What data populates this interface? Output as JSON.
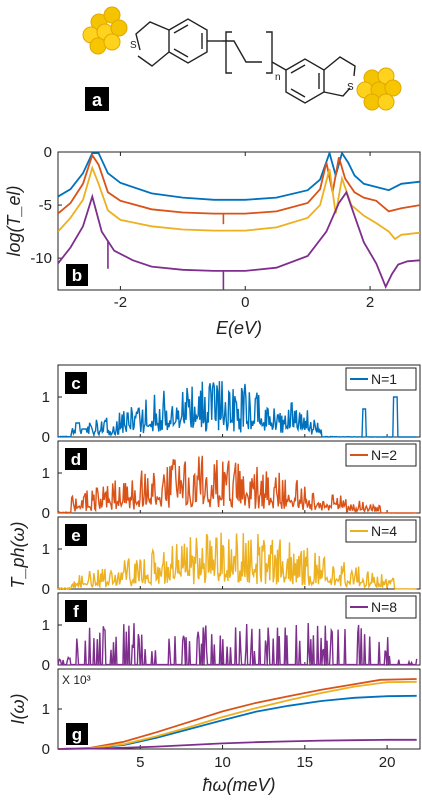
{
  "molecule": {
    "atom_s_left": "S",
    "atom_s_right": "S",
    "repeat_n": "n",
    "panel_label": "a"
  },
  "chart_data": [
    {
      "type": "line",
      "panel": "b",
      "xlabel": "E(eV)",
      "ylabel": "log(T_el)",
      "xlim": [
        -3.0,
        2.8
      ],
      "ylim": [
        -13,
        0
      ],
      "xticks": [
        -2,
        0,
        2
      ],
      "yticks": [
        0,
        -5,
        -10
      ],
      "xtick_labels": [
        "-2",
        "0",
        "2"
      ],
      "ytick_labels": [
        "0",
        "-5",
        "-10"
      ],
      "grid": false,
      "series": [
        {
          "color": "#0072BD",
          "x": [
            -3.0,
            -2.8,
            -2.6,
            -2.45,
            -2.35,
            -2.2,
            -2.0,
            -1.5,
            -1.0,
            -0.5,
            0.0,
            0.5,
            1.0,
            1.2,
            1.35,
            1.45,
            1.55,
            1.65,
            1.75,
            1.9,
            2.1,
            2.3,
            2.5,
            2.8
          ],
          "y": [
            -4.2,
            -3.5,
            -2.0,
            -0.1,
            -0.1,
            -2.0,
            -2.9,
            -3.9,
            -4.3,
            -4.5,
            -4.5,
            -4.3,
            -3.6,
            -2.6,
            -0.1,
            -2.2,
            -0.1,
            -1.0,
            -2.2,
            -3.0,
            -3.3,
            -3.6,
            -3.0,
            -2.8
          ]
        },
        {
          "color": "#D95319",
          "x": [
            -3.0,
            -2.8,
            -2.6,
            -2.45,
            -2.35,
            -2.2,
            -2.0,
            -1.5,
            -1.0,
            -0.5,
            0.0,
            0.5,
            1.0,
            1.2,
            1.3,
            1.4,
            1.5,
            1.6,
            1.75,
            1.9,
            2.1,
            2.3,
            2.5,
            2.8
          ],
          "y": [
            -5.8,
            -4.8,
            -3.0,
            -0.3,
            -1.2,
            -3.8,
            -4.6,
            -5.4,
            -5.7,
            -5.8,
            -5.8,
            -5.6,
            -4.8,
            -3.5,
            -1.0,
            -3.8,
            -0.5,
            -2.5,
            -3.8,
            -4.3,
            -4.6,
            -5.6,
            -5.3,
            -5.0
          ]
        },
        {
          "color": "#EDB120",
          "x": [
            -3.0,
            -2.8,
            -2.6,
            -2.45,
            -2.35,
            -2.2,
            -2.0,
            -1.5,
            -1.0,
            -0.5,
            0.0,
            0.5,
            1.0,
            1.2,
            1.35,
            1.45,
            1.55,
            1.7,
            1.9,
            2.1,
            2.3,
            2.4,
            2.5,
            2.8
          ],
          "y": [
            -7.5,
            -6.2,
            -4.5,
            -1.5,
            -3.0,
            -5.5,
            -6.4,
            -7.0,
            -7.3,
            -7.4,
            -7.4,
            -7.1,
            -6.2,
            -5.0,
            -1.6,
            -5.8,
            -2.5,
            -5.0,
            -6.0,
            -6.7,
            -7.5,
            -8.2,
            -7.8,
            -7.6
          ]
        },
        {
          "color": "#7E2F8E",
          "x": [
            -3.0,
            -2.8,
            -2.6,
            -2.45,
            -2.3,
            -2.1,
            -1.8,
            -1.5,
            -1.0,
            -0.5,
            0.0,
            0.5,
            1.0,
            1.3,
            1.5,
            1.62,
            1.75,
            1.9,
            2.1,
            2.25,
            2.35,
            2.45,
            2.6,
            2.8
          ],
          "y": [
            -10.5,
            -9.0,
            -7.0,
            -4.2,
            -7.5,
            -9.3,
            -10.2,
            -10.8,
            -11.1,
            -11.2,
            -11.2,
            -10.9,
            -9.8,
            -7.5,
            -4.8,
            -3.8,
            -6.0,
            -8.5,
            -10.5,
            -12.7,
            -11.5,
            -10.6,
            -10.3,
            -10.2
          ]
        }
      ],
      "dips": [
        {
          "series": 1,
          "x": -0.35,
          "y": -6.8
        },
        {
          "series": 3,
          "x": -0.35,
          "y": -13.0
        },
        {
          "series": 3,
          "x": -2.2,
          "y": -11.0
        }
      ]
    },
    {
      "type": "line",
      "panels": [
        {
          "label": "c",
          "legend": "N=1",
          "color": "#0072BD",
          "center": 9.5,
          "width": 6.5,
          "cutoff": 16.0,
          "extras": [
            [
              1.2,
              0.35
            ],
            [
              1.6,
              0.2
            ],
            [
              18.6,
              0.7
            ],
            [
              20.5,
              1.0
            ]
          ]
        },
        {
          "label": "d",
          "legend": "N=2",
          "color": "#D95319",
          "center": 9.0,
          "width": 7.5,
          "cutoff": 19.6,
          "extras": []
        },
        {
          "label": "e",
          "legend": "N=4",
          "color": "#EDB120",
          "center": 10.5,
          "width": 8.0,
          "cutoff": 20.5,
          "extras": []
        },
        {
          "label": "f",
          "legend": "N=8",
          "color": "#7E2F8E",
          "center": 10.0,
          "width": 9.0,
          "cutoff": 20.5,
          "extras": []
        }
      ],
      "ylabel": "T_ph(ω)",
      "xlim": [
        0,
        22
      ],
      "ylim": [
        0,
        1.8
      ],
      "yticks": [
        0,
        1
      ],
      "ytick_labels": [
        "0",
        "1"
      ],
      "legend_position": "top-right"
    },
    {
      "type": "line",
      "panel": "g",
      "xlabel": "ħω(meV)",
      "ylabel": "I(ω)",
      "multiplier": "X 10³",
      "xlim": [
        0,
        22
      ],
      "ylim": [
        0,
        2
      ],
      "xticks": [
        5,
        10,
        15,
        20
      ],
      "xtick_labels": [
        "5",
        "10",
        "15",
        "20"
      ],
      "yticks": [
        0,
        1
      ],
      "ytick_labels": [
        "0",
        "1"
      ],
      "series": [
        {
          "color": "#0072BD",
          "x": [
            0,
            2,
            4,
            6,
            8,
            10,
            12,
            14,
            16,
            18,
            20,
            21.8
          ],
          "y": [
            0,
            0.02,
            0.1,
            0.28,
            0.5,
            0.72,
            0.93,
            1.08,
            1.2,
            1.28,
            1.32,
            1.33
          ]
        },
        {
          "color": "#D95319",
          "x": [
            0,
            2,
            4,
            6,
            8,
            10,
            12,
            14,
            16,
            18,
            19.6,
            21.8
          ],
          "y": [
            0,
            0.03,
            0.18,
            0.42,
            0.68,
            0.94,
            1.15,
            1.32,
            1.48,
            1.62,
            1.73,
            1.75
          ]
        },
        {
          "color": "#EDB120",
          "x": [
            0,
            2,
            4,
            6,
            8,
            10,
            12,
            14,
            16,
            18,
            20,
            21.8
          ],
          "y": [
            0,
            0.02,
            0.12,
            0.32,
            0.55,
            0.8,
            1.02,
            1.22,
            1.4,
            1.56,
            1.67,
            1.68
          ]
        },
        {
          "color": "#7E2F8E",
          "x": [
            0,
            2,
            4,
            6,
            8,
            10,
            12,
            14,
            16,
            18,
            20,
            21.8
          ],
          "y": [
            0,
            0.01,
            0.03,
            0.06,
            0.1,
            0.14,
            0.17,
            0.19,
            0.21,
            0.22,
            0.23,
            0.23
          ]
        }
      ]
    }
  ]
}
